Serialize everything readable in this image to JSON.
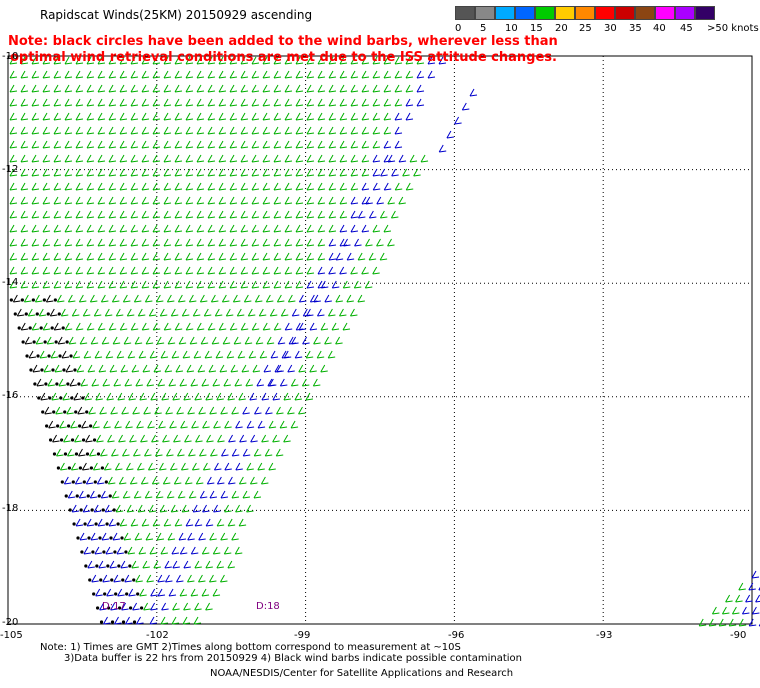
{
  "title": "Rapidscat Winds(25KM) 20150929 ascending",
  "note_line1": "Note: black circles have been added to the wind barbs, wherever less than",
  "note_line2": "optimal wind retrieval conditions are met due to the ISS attitude changes.",
  "scale": {
    "labels": [
      "0",
      "5",
      "10",
      "15",
      "20",
      "25",
      "30",
      "35",
      "40",
      "45",
      ">50 knots"
    ],
    "colors": [
      "#555555",
      "#888888",
      "#00aaff",
      "#0066ff",
      "#00cc00",
      "#ffcc00",
      "#ff8800",
      "#ff0000",
      "#cc0000",
      "#8b4513",
      "#ff00ff",
      "#aa00ff",
      "#330066"
    ]
  },
  "axes": {
    "lat_labels": [
      "-10",
      "-12",
      "-14",
      "-16",
      "-18",
      "-20"
    ],
    "lon_labels": [
      "-105",
      "-102",
      "-99",
      "-96",
      "-93",
      "-90"
    ]
  },
  "swath_labels": [
    "D:17",
    "D:18"
  ],
  "footnote_line1": "Note: 1) Times are GMT 2)Times along bottom correspond to measurement at ~10S",
  "footnote_line2": "3)Data buffer is 22 hrs from 20150929 4) Black wind barbs indicate possible contamination",
  "credit": "NOAA/NESDIS/Center for Satellite Applications and Research",
  "chart_data": {
    "type": "scatter",
    "lon_range": [
      -105,
      -90
    ],
    "lat_range": [
      -20,
      -10
    ],
    "grid": true,
    "wind_speed_units": "knots",
    "swaths": [
      {
        "label": "D:17",
        "dominant_speed_knots": "10-20",
        "colors": [
          "green",
          "blue",
          "black"
        ]
      },
      {
        "label": "D:18",
        "dominant_speed_knots": "10-20",
        "colors": [
          "green",
          "blue"
        ]
      }
    ]
  }
}
